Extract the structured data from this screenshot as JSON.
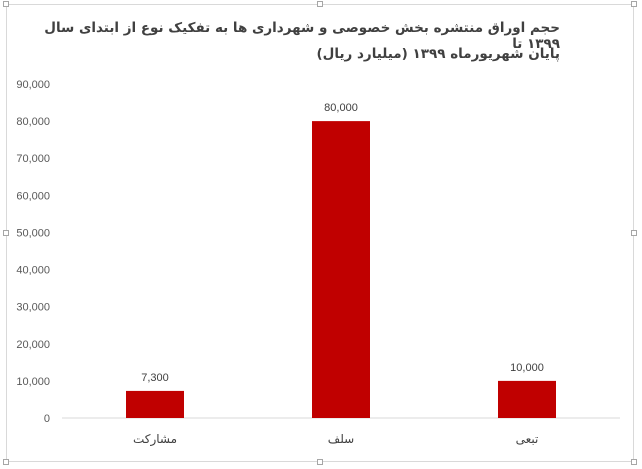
{
  "chart_data": {
    "type": "bar",
    "title_line1": "حجم اوراق منتشره بخش خصوصی و شهرداری ها به تفکیک نوع از ابتدای سال ۱۳۹۹ تا",
    "title_line2": "پایان شهریورماه ۱۳۹۹ (میلیارد ریال)",
    "categories": [
      "مشارکت",
      "سلف",
      "تبعی"
    ],
    "values": [
      7300,
      80000,
      10000
    ],
    "data_labels": [
      "7,300",
      "80,000",
      "10,000"
    ],
    "ylim": [
      0,
      90000
    ],
    "yticks": [
      "0",
      "10,000",
      "20,000",
      "30,000",
      "40,000",
      "50,000",
      "60,000",
      "70,000",
      "80,000",
      "90,000"
    ],
    "grid": false,
    "legend": "none",
    "bar_color": "#c00000"
  }
}
